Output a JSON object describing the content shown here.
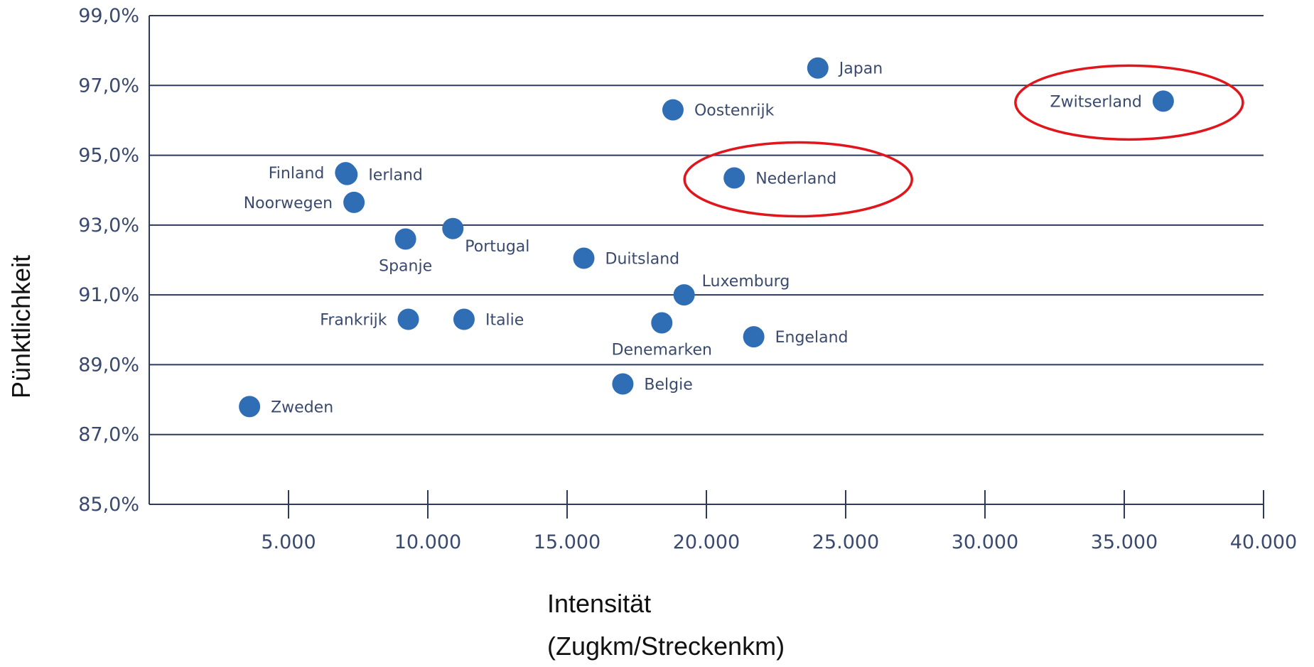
{
  "chart_data": {
    "type": "scatter",
    "title": "",
    "xlabel": [
      "Intensität",
      "(Zugkm/Streckenkm)"
    ],
    "ylabel": "Pünktlichkeit",
    "xlim": [
      0,
      40000
    ],
    "ylim": [
      85.0,
      99.0
    ],
    "x_ticks": [
      5000,
      10000,
      15000,
      20000,
      25000,
      30000,
      35000,
      40000
    ],
    "x_tick_labels": [
      "5.000",
      "10.000",
      "15.000",
      "20.000",
      "25.000",
      "30.000",
      "35.000",
      "40.000"
    ],
    "y_ticks": [
      85.0,
      87.0,
      89.0,
      91.0,
      93.0,
      95.0,
      97.0,
      99.0
    ],
    "y_tick_labels": [
      "85,0%",
      "87,0%",
      "89,0%",
      "91,0%",
      "93,0%",
      "95,0%",
      "97,0%",
      "99,0%"
    ],
    "grid": "horizontal",
    "colors": {
      "point": "#2f6db5",
      "axis": "#2e3a5c",
      "text": "#3a4a6e",
      "highlight": "#e0161c"
    },
    "points": [
      {
        "label": "Zweden",
        "x": 3600,
        "y": 87.8,
        "label_pos": "right"
      },
      {
        "label": "Finland",
        "x": 7050,
        "y": 94.5,
        "label_pos": "left"
      },
      {
        "label": "Ierland",
        "x": 7100,
        "y": 94.45,
        "label_pos": "right"
      },
      {
        "label": "Noorwegen",
        "x": 7350,
        "y": 93.65,
        "label_pos": "left"
      },
      {
        "label": "Spanje",
        "x": 9200,
        "y": 92.6,
        "label_pos": "below"
      },
      {
        "label": "Frankrijk",
        "x": 9300,
        "y": 90.3,
        "label_pos": "left"
      },
      {
        "label": "Portugal",
        "x": 10900,
        "y": 92.9,
        "label_pos": "below-right"
      },
      {
        "label": "Italie",
        "x": 11300,
        "y": 90.3,
        "label_pos": "right"
      },
      {
        "label": "Duitsland",
        "x": 15600,
        "y": 92.05,
        "label_pos": "right"
      },
      {
        "label": "Belgie",
        "x": 17000,
        "y": 88.45,
        "label_pos": "right"
      },
      {
        "label": "Denemarken",
        "x": 18400,
        "y": 90.2,
        "label_pos": "below"
      },
      {
        "label": "Oostenrijk",
        "x": 18800,
        "y": 96.3,
        "label_pos": "right"
      },
      {
        "label": "Luxemburg",
        "x": 19200,
        "y": 91.0,
        "label_pos": "above-right"
      },
      {
        "label": "Nederland",
        "x": 21000,
        "y": 94.35,
        "label_pos": "right"
      },
      {
        "label": "Engeland",
        "x": 21700,
        "y": 89.8,
        "label_pos": "right"
      },
      {
        "label": "Japan",
        "x": 24000,
        "y": 97.5,
        "label_pos": "right"
      },
      {
        "label": "Zwitserland",
        "x": 36400,
        "y": 96.55,
        "label_pos": "left"
      }
    ],
    "highlighted": [
      "Nederland",
      "Zwitserland"
    ]
  }
}
